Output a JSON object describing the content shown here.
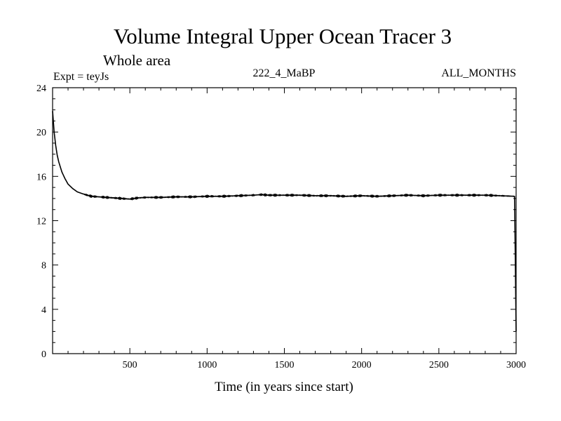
{
  "chart_data": {
    "type": "line",
    "title": "Volume Integral Upper Ocean Tracer 3",
    "subtitle": "Whole area",
    "expt_label": "Expt = teyJs",
    "run_label": "222_4_MaBP",
    "months_label": "ALL_MONTHS",
    "xlabel": "Time (in years since start)",
    "ylabel": "",
    "xlim": [
      0,
      3000
    ],
    "ylim": [
      0,
      24
    ],
    "x_major_ticks": [
      500,
      1000,
      1500,
      2000,
      2500,
      3000
    ],
    "x_minor_step": 100,
    "y_major_ticks": [
      0,
      4,
      8,
      12,
      16,
      20,
      24
    ],
    "y_minor_step": 1,
    "grid": false,
    "line_color": "#000000",
    "series": [
      {
        "name": "Tracer 3",
        "x": [
          0,
          10,
          20,
          30,
          40,
          60,
          80,
          100,
          130,
          160,
          200,
          250,
          300,
          350,
          400,
          450,
          500,
          550,
          600,
          700,
          800,
          900,
          1000,
          1100,
          1200,
          1300,
          1350,
          1400,
          1500,
          1600,
          1700,
          1800,
          1900,
          2000,
          2100,
          2200,
          2300,
          2400,
          2500,
          2600,
          2700,
          2800,
          2900,
          2990,
          3000
        ],
        "values": [
          21.9,
          20.0,
          18.8,
          17.9,
          17.3,
          16.4,
          15.8,
          15.3,
          14.9,
          14.6,
          14.4,
          14.2,
          14.15,
          14.1,
          14.05,
          14.0,
          13.95,
          14.05,
          14.1,
          14.1,
          14.15,
          14.15,
          14.2,
          14.2,
          14.25,
          14.3,
          14.35,
          14.3,
          14.3,
          14.3,
          14.25,
          14.25,
          14.2,
          14.25,
          14.2,
          14.25,
          14.3,
          14.25,
          14.3,
          14.3,
          14.3,
          14.3,
          14.25,
          14.2,
          2.0
        ]
      }
    ]
  }
}
